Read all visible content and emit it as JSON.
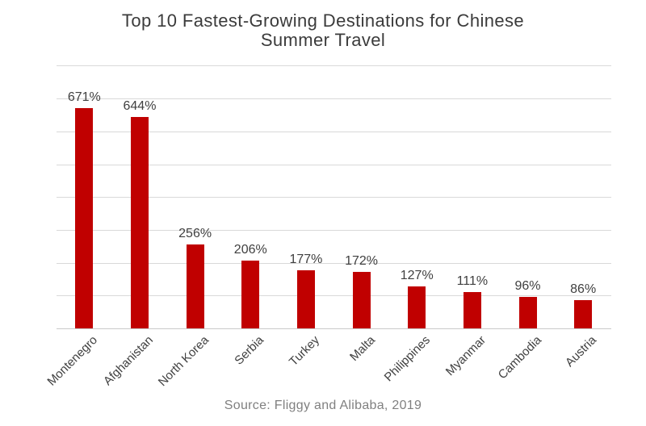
{
  "title": {
    "line1": "Top 10 Fastest-Growing Destinations for Chinese",
    "line2": "Summer Travel"
  },
  "source": "Source: Fliggy and Alibaba, 2019",
  "colors": {
    "bar": "#c00000",
    "title_text": "#3b3b3b",
    "label_text": "#404040",
    "gridline": "#d9d9d9",
    "axis_line": "#c9c9c9",
    "source_text": "#808080",
    "background": "#ffffff"
  },
  "chart_data": {
    "type": "bar",
    "title": "Top 10 Fastest-Growing Destinations for Chinese Summer Travel",
    "categories": [
      "Montenegro",
      "Afghanistan",
      "North Korea",
      "Serbia",
      "Turkey",
      "Malta",
      "Philippines",
      "Myanmar",
      "Cambodia",
      "Austria"
    ],
    "values": [
      671,
      644,
      256,
      206,
      177,
      172,
      127,
      111,
      96,
      86
    ],
    "value_labels": [
      "671%",
      "644%",
      "256%",
      "206%",
      "177%",
      "172%",
      "127%",
      "111%",
      "96%",
      "86%"
    ],
    "xlabel": "",
    "ylabel": "",
    "ylim": [
      0,
      800
    ],
    "gridline_step": 100,
    "grid": true,
    "legend": "none",
    "x_tick_rotation_deg": 45,
    "caption": "Source: Fliggy and Alibaba, 2019"
  }
}
